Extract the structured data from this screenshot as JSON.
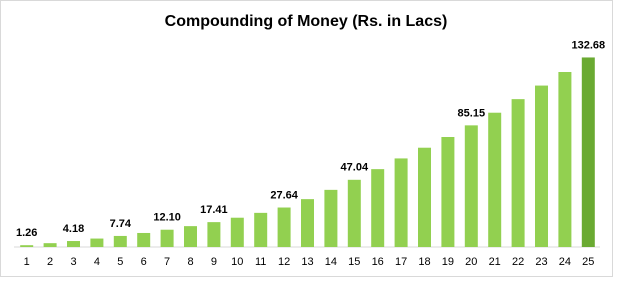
{
  "chart_data": {
    "type": "bar",
    "title": "Compounding of Money (Rs. in Lacs)",
    "categories": [
      "1",
      "2",
      "3",
      "4",
      "5",
      "6",
      "7",
      "8",
      "9",
      "10",
      "11",
      "12",
      "13",
      "14",
      "15",
      "16",
      "17",
      "18",
      "19",
      "20",
      "21",
      "22",
      "23",
      "24",
      "25"
    ],
    "values": [
      1.26,
      2.68,
      4.18,
      5.91,
      7.74,
      9.82,
      12.1,
      14.6,
      17.41,
      20.5,
      23.9,
      27.64,
      33.5,
      40.0,
      47.04,
      54.5,
      62.0,
      69.5,
      77.0,
      85.15,
      94.0,
      103.5,
      113.0,
      122.5,
      132.68
    ],
    "value_labels": [
      "1.26",
      null,
      "4.18",
      null,
      "7.74",
      null,
      "12.10",
      null,
      "17.41",
      null,
      null,
      "27.64",
      null,
      null,
      "47.04",
      null,
      null,
      null,
      null,
      "85.15",
      null,
      null,
      null,
      null,
      "132.68"
    ],
    "colors": [
      "#92d050",
      "#92d050",
      "#92d050",
      "#92d050",
      "#92d050",
      "#92d050",
      "#92d050",
      "#92d050",
      "#92d050",
      "#92d050",
      "#92d050",
      "#92d050",
      "#92d050",
      "#92d050",
      "#92d050",
      "#92d050",
      "#92d050",
      "#92d050",
      "#92d050",
      "#92d050",
      "#92d050",
      "#92d050",
      "#92d050",
      "#92d050",
      "#6aaa32"
    ],
    "ylim": [
      0,
      140
    ]
  }
}
